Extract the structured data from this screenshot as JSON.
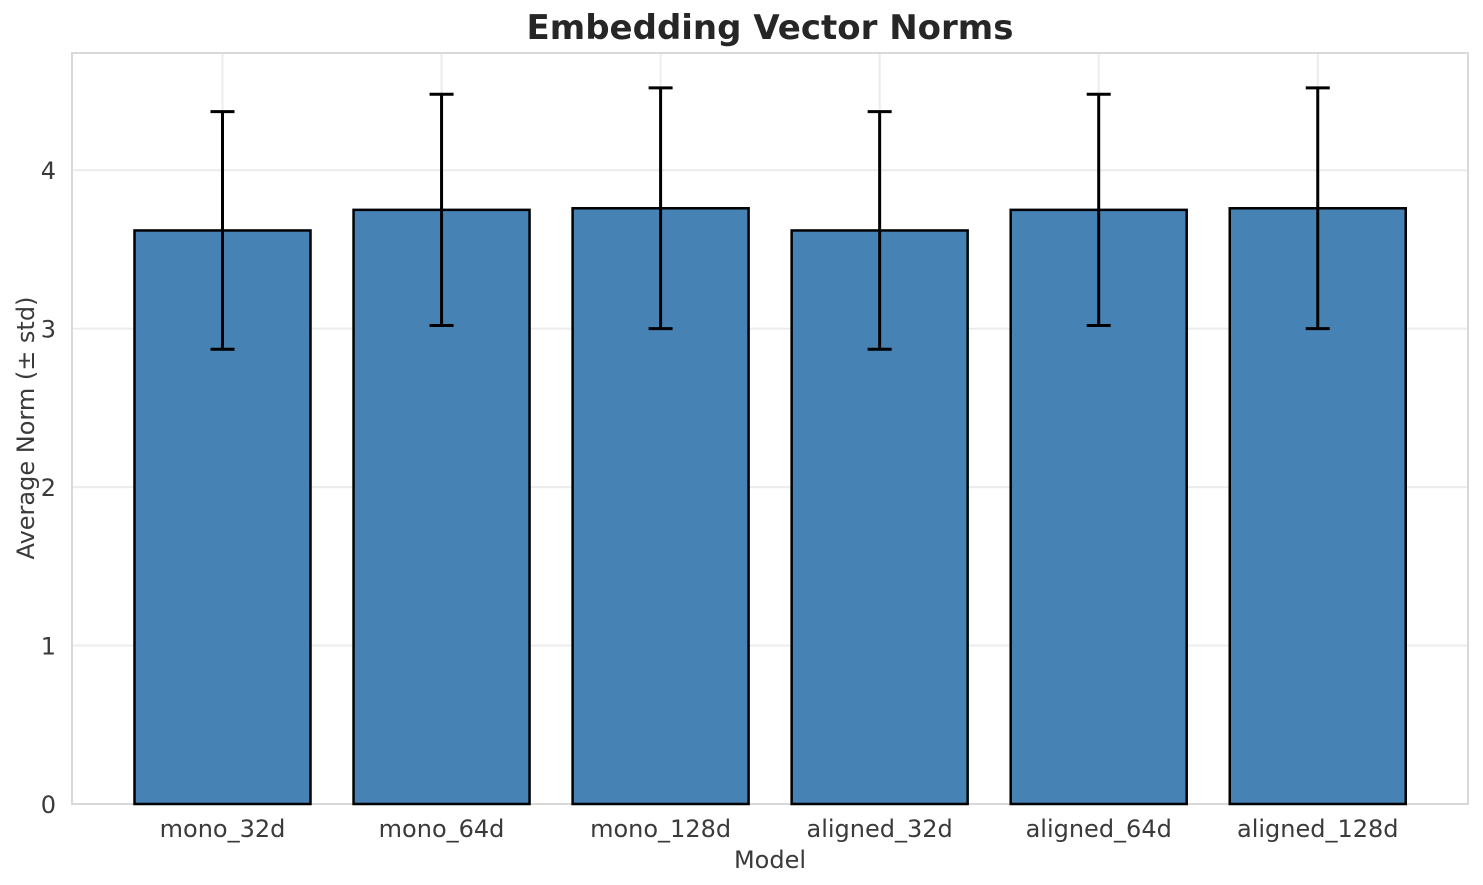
{
  "chart_data": {
    "type": "bar",
    "title": "Embedding Vector Norms",
    "xlabel": "Model",
    "ylabel": "Average Norm (± std)",
    "categories": [
      "mono_32d",
      "mono_64d",
      "mono_128d",
      "aligned_32d",
      "aligned_64d",
      "aligned_128d"
    ],
    "series": [
      {
        "name": "Average Norm",
        "values": [
          3.62,
          3.75,
          3.76,
          3.62,
          3.75,
          3.76
        ],
        "errors": [
          0.75,
          0.73,
          0.76,
          0.75,
          0.73,
          0.76
        ]
      }
    ],
    "yticks": [
      "0",
      "1",
      "2",
      "3",
      "4"
    ],
    "ylim": [
      0,
      4.74
    ],
    "grid": "both",
    "legend": "none",
    "colors": {
      "bar_fill": "#4682b4",
      "bar_edge": "#000000",
      "error_bar": "#000000",
      "gridline": "#ececec",
      "spine": "#d9d9d9",
      "title_text": "#262626",
      "axis_text": "#3a3a3a",
      "background": "#ffffff"
    }
  }
}
